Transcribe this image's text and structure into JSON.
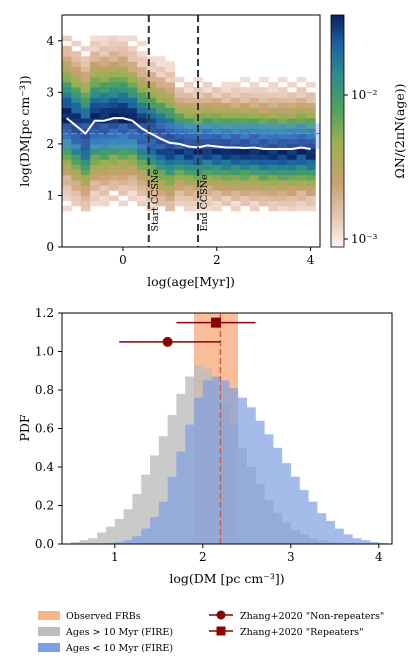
{
  "chart_data": [
    {
      "type": "heatmap",
      "xlabel": "log(age[Myr])",
      "ylabel": "log(DM[pc cm⁻³])",
      "xlim": [
        -1.3,
        4.2
      ],
      "ylim": [
        0,
        4.5
      ],
      "xticks": [
        "0",
        "2",
        "4"
      ],
      "yticks": [
        "0",
        "1",
        "2",
        "3",
        "4"
      ],
      "colorbar": {
        "label": "ΩN/(2πN(age))",
        "scale": "log",
        "range": [
          0.0008,
          0.04
        ],
        "ticks": [
          "10⁻²",
          "10⁻³"
        ]
      },
      "median_curve": {
        "x": [
          -1.2,
          -1.0,
          -0.8,
          -0.6,
          -0.4,
          -0.2,
          0.0,
          0.2,
          0.4,
          0.6,
          0.8,
          1.0,
          1.2,
          1.4,
          1.6,
          1.8,
          2.0,
          2.2,
          2.4,
          2.6,
          2.8,
          3.0,
          3.2,
          3.4,
          3.6,
          3.8,
          4.0
        ],
        "y": [
          2.5,
          2.35,
          2.2,
          2.45,
          2.45,
          2.5,
          2.5,
          2.45,
          2.3,
          2.2,
          2.1,
          2.02,
          2.0,
          1.95,
          1.93,
          1.97,
          1.95,
          1.93,
          1.93,
          1.92,
          1.93,
          1.9,
          1.9,
          1.9,
          1.9,
          1.93,
          1.9
        ]
      },
      "observed_band": [
        1.9,
        2.4
      ],
      "observed_median": 2.2,
      "vlines": [
        {
          "x": 0.55,
          "label": "Start CCSNe"
        },
        {
          "x": 1.6,
          "label": "End CCSNe"
        }
      ]
    },
    {
      "type": "bar",
      "xlabel": "log(DM [pc cm⁻³])",
      "ylabel": "PDF",
      "xlim": [
        0.4,
        4.15
      ],
      "ylim": [
        0,
        1.2
      ],
      "xticks": [
        "1",
        "2",
        "3",
        "4"
      ],
      "yticks": [
        "0.0",
        "0.2",
        "0.4",
        "0.6",
        "0.8",
        "1.0",
        "1.2"
      ],
      "observed_band": [
        1.9,
        2.4
      ],
      "observed_median": 2.2,
      "bin_width": 0.1,
      "series": [
        {
          "name": "Ages > 10 Myr (FIRE)",
          "color": "#bdbdbd",
          "x": [
            0.5,
            0.6,
            0.7,
            0.8,
            0.9,
            1.0,
            1.1,
            1.2,
            1.3,
            1.4,
            1.5,
            1.6,
            1.7,
            1.8,
            1.9,
            2.0,
            2.1,
            2.2,
            2.3,
            2.4,
            2.5,
            2.6,
            2.7,
            2.8,
            2.9,
            3.0,
            3.1,
            3.2,
            3.3,
            3.4,
            3.5,
            3.6,
            3.7,
            3.8
          ],
          "values": [
            0.01,
            0.02,
            0.03,
            0.06,
            0.09,
            0.13,
            0.18,
            0.26,
            0.36,
            0.46,
            0.56,
            0.67,
            0.78,
            0.87,
            0.93,
            0.91,
            0.84,
            0.73,
            0.62,
            0.5,
            0.4,
            0.31,
            0.23,
            0.16,
            0.11,
            0.07,
            0.05,
            0.03,
            0.02,
            0.01,
            0.008,
            0.005,
            0.003,
            0.002
          ]
        },
        {
          "name": "Ages < 10 Myr (FIRE)",
          "color": "#7f9fe3",
          "x": [
            0.9,
            1.0,
            1.1,
            1.2,
            1.3,
            1.4,
            1.5,
            1.6,
            1.7,
            1.8,
            1.9,
            2.0,
            2.1,
            2.2,
            2.3,
            2.4,
            2.5,
            2.6,
            2.7,
            2.8,
            2.9,
            3.0,
            3.1,
            3.2,
            3.3,
            3.4,
            3.5,
            3.6,
            3.7,
            3.8,
            3.9,
            4.0
          ],
          "values": [
            0.005,
            0.01,
            0.02,
            0.04,
            0.08,
            0.14,
            0.22,
            0.35,
            0.48,
            0.62,
            0.76,
            0.85,
            0.87,
            0.85,
            0.81,
            0.76,
            0.71,
            0.64,
            0.57,
            0.5,
            0.42,
            0.35,
            0.28,
            0.22,
            0.16,
            0.12,
            0.08,
            0.05,
            0.03,
            0.02,
            0.01,
            0.005
          ]
        }
      ],
      "points": [
        {
          "name": "Zhang+2020 \"Non-repeaters\"",
          "x": 1.6,
          "y": 1.05,
          "xerr": [
            1.05,
            2.2
          ],
          "marker": "circle"
        },
        {
          "name": "Zhang+2020 \"Repeaters\"",
          "x": 2.15,
          "y": 1.15,
          "xerr": [
            1.7,
            2.6
          ],
          "marker": "square"
        }
      ]
    }
  ],
  "legend": {
    "items": [
      {
        "label": "Observed FRBs",
        "color": "#f8b48a"
      },
      {
        "label": "Ages > 10 Myr (FIRE)",
        "color": "#bdbdbd"
      },
      {
        "label": "Ages < 10 Myr (FIRE)",
        "color": "#7f9fe3"
      },
      {
        "label": "Zhang+2020 \"Non-repeaters\"",
        "color": "#8b0000"
      },
      {
        "label": "Zhang+2020 \"Repeaters\"",
        "color": "#8b0000"
      }
    ]
  }
}
